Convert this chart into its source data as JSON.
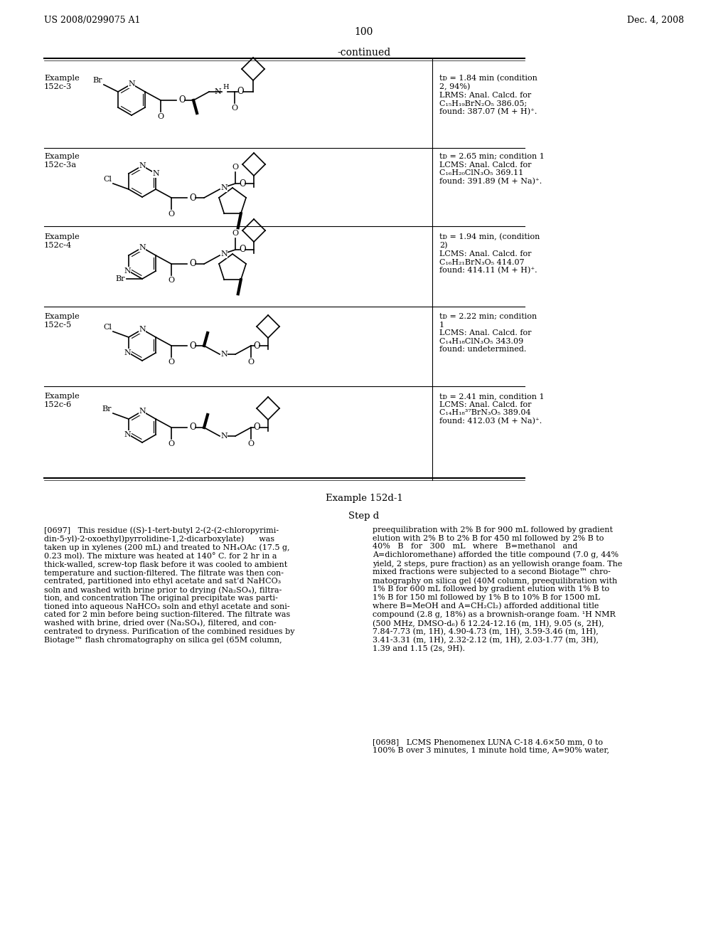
{
  "page_header_left": "US 2008/0299075 A1",
  "page_header_right": "Dec. 4, 2008",
  "page_number": "100",
  "continued_label": "-continued",
  "background_color": "#ffffff",
  "text_color": "#000000",
  "example_labels": [
    "Example\n152c-3",
    "Example\n152c-3a",
    "Example\n152c-4",
    "Example\n152c-5",
    "Example\n152c-6"
  ],
  "annotations": [
    "tᴅ = 1.84 min (condition\n2, 94%)\nLRMS: Anal. Calcd. for\nC₁₅H₁₉BrN₂O₅ 386.05;\nfound: 387.07 (M + H)⁺.",
    "tᴅ = 2.65 min; condition 1\nLCMS: Anal. Calcd. for\nC₁₆H₂₀ClN₃O₅ 369.11\nfound: 391.89 (M + Na)⁺.",
    "tᴅ = 1.94 min, (condition\n2)\nLCMS: Anal. Calcd. for\nC₁₆H₂₁BrN₃O₅ 414.07\nfound: 414.11 (M + H)⁺.",
    "tᴅ = 2.22 min; condition\n1\nLCMS: Anal. Calcd. for\nC₁₄H₁₈ClN₃O₅ 343.09\nfound: undetermined.",
    "tᴅ = 2.41 min, condition 1\nLCMS: Anal. Calcd. for\nC₁₄H₁₈³⁷BrN₃O₅ 389.04\nfound: 412.03 (M + Na)⁺."
  ],
  "example_title": "Example 152d-1",
  "step_title": "Step d",
  "para_left": "[0697]   This residue ((S)-1-tert-butyl 2-(2-(2-chloropyrimi-\ndin-5-yl)-2-oxoethyl)pyrrolidine-1,2-dicarboxylate)      was\ntaken up in xylenes (200 mL) and treated to NH₄OAc (17.5 g,\n0.23 mol). The mixture was heated at 140° C. for 2 hr in a\nthick-walled, screw-top flask before it was cooled to ambient\ntemperature and suction-filtered. The filtrate was then con-\ncentrated, partitioned into ethyl acetate and sat’d NaHCO₃\nsoln and washed with brine prior to drying (Na₂SO₄), filtra-\ntion, and concentration The original precipitate was parti-\ntioned into aqueous NaHCO₃ soln and ethyl acetate and soni-\ncated for 2 min before being suction-filtered. The filtrate was\nwashed with brine, dried over (Na₂SO₄), filtered, and con-\ncentrated to dryness. Purification of the combined residues by\nBiotage™ flash chromatography on silica gel (65M column,",
  "para_right1": "preequilibration with 2% B for 900 mL followed by gradient\nelution with 2% B to 2% B for 450 ml followed by 2% B to\n40%   B   for   300   mL   where   B=methanol   and\nA=dichloromethane) afforded the title compound (7.0 g, 44%\nyield, 2 steps, pure fraction) as an yellowish orange foam. The\nmixed fractions were subjected to a second Biotage™ chro-\nmatography on silica gel (40M column, preequilibration with\n1% B for 600 mL followed by gradient elution with 1% B to\n1% B for 150 ml followed by 1% B to 10% B for 1500 mL\nwhere B=MeOH and A=CH₂Cl₂) afforded additional title\ncompound (2.8 g, 18%) as a brownish-orange foam. ¹H NMR\n(500 MHz, DMSO-d₆) δ 12.24-12.16 (m, 1H), 9.05 (s, 2H),\n7.84-7.73 (m, 1H), 4.90-4.73 (m, 1H), 3.59-3.46 (m, 1H),\n3.41-3.31 (m, 1H), 2.32-2.12 (m, 1H), 2.03-1.77 (m, 3H),\n1.39 and 1.15 (2s, 9H).",
  "para_right2": "[0698]   LCMS Phenomenex LUNA C-18 4.6×50 mm, 0 to\n100% B over 3 minutes, 1 minute hold time, A=90% water,"
}
